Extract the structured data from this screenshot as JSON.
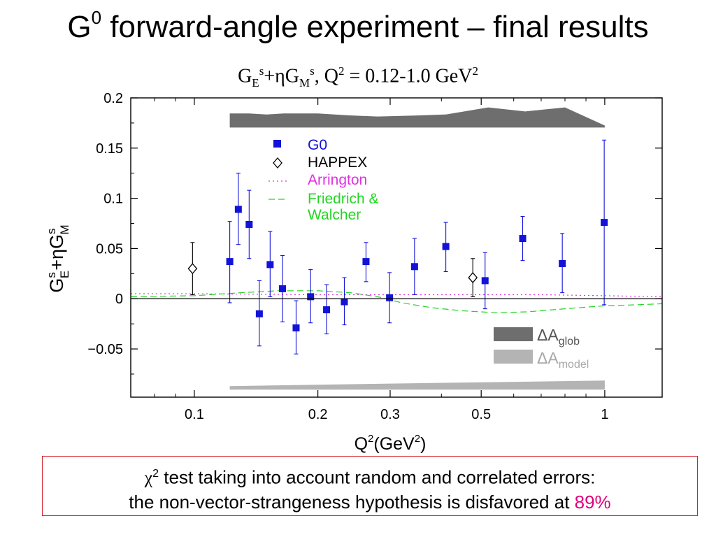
{
  "slide": {
    "title_pre": "G",
    "title_sup": "0",
    "title_rest": " forward-angle experiment – final results",
    "subtitle": {
      "g1": "G",
      "e": "E",
      "s1": "s",
      "plus_eta": "+ηG",
      "m": "M",
      "s2": "s",
      "rest": ", Q",
      "sq": "2",
      "range": " = 0.12-1.0 GeV",
      "sq2": "2"
    },
    "note": {
      "chi": "χ",
      "chi_sup": "2",
      "line1": " test taking into account random and correlated errors:",
      "line2": "the non-vector-strangeness hypothesis is disfavored at ",
      "percent": "89%"
    }
  },
  "chart_data": {
    "type": "scatter",
    "x_scale": "log",
    "xlim": [
      0.07,
      1.38
    ],
    "ylim": [
      -0.098,
      0.2
    ],
    "xticks": [
      "0.1",
      "0.2",
      "0.3",
      "0.5",
      "1"
    ],
    "xtick_values": [
      0.1,
      0.2,
      0.3,
      0.5,
      1.0
    ],
    "yticks": [
      "0.2",
      "0.15",
      "0.1",
      "0.05",
      "0",
      "−0.05"
    ],
    "ytick_values": [
      0.2,
      0.15,
      0.1,
      0.05,
      0,
      -0.05
    ],
    "xlabel": {
      "q": "Q",
      "sup": "2",
      "unit": "(GeV",
      "unit_sup": "2",
      "close": ")"
    },
    "ylabel": {
      "g1": "G",
      "s1": "s",
      "e": "E",
      "plus_eta": "+ηG",
      "s2": "s",
      "m": "M"
    },
    "colors": {
      "g0": "#1212d8",
      "happex": "#000000",
      "arrington": "#e033e0",
      "friedrich": "#22d622",
      "band_glob": "#6e6e6e",
      "band_model": "#b4b4b4"
    },
    "legend": {
      "position": "top-center",
      "g0": "G0",
      "happex": "HAPPEX",
      "arrington": "Arrington",
      "friedrich_1": "Friedrich &",
      "friedrich_2": "Walcher"
    },
    "band_legend": {
      "position": "bottom-right",
      "glob_delta": "ΔA",
      "glob_sub": "glob",
      "model_delta": "ΔA",
      "model_sub": "model"
    },
    "series": [
      {
        "name": "G0",
        "marker": "square",
        "points": [
          {
            "x": 0.122,
            "y": 0.037,
            "lo": -0.004,
            "hi": 0.077
          },
          {
            "x": 0.128,
            "y": 0.089,
            "lo": 0.054,
            "hi": 0.125
          },
          {
            "x": 0.136,
            "y": 0.074,
            "lo": 0.04,
            "hi": 0.108
          },
          {
            "x": 0.144,
            "y": -0.015,
            "lo": -0.047,
            "hi": 0.018
          },
          {
            "x": 0.153,
            "y": 0.034,
            "lo": 0.002,
            "hi": 0.067
          },
          {
            "x": 0.164,
            "y": 0.01,
            "lo": -0.023,
            "hi": 0.043
          },
          {
            "x": 0.177,
            "y": -0.029,
            "lo": -0.055,
            "hi": -0.002
          },
          {
            "x": 0.192,
            "y": 0.002,
            "lo": -0.024,
            "hi": 0.029
          },
          {
            "x": 0.21,
            "y": -0.011,
            "lo": -0.035,
            "hi": 0.014
          },
          {
            "x": 0.232,
            "y": -0.003,
            "lo": -0.026,
            "hi": 0.021
          },
          {
            "x": 0.262,
            "y": 0.037,
            "lo": 0.017,
            "hi": 0.056
          },
          {
            "x": 0.299,
            "y": 0.001,
            "lo": -0.024,
            "hi": 0.026
          },
          {
            "x": 0.344,
            "y": 0.032,
            "lo": 0.004,
            "hi": 0.06
          },
          {
            "x": 0.41,
            "y": 0.052,
            "lo": 0.027,
            "hi": 0.076
          },
          {
            "x": 0.511,
            "y": 0.018,
            "lo": -0.01,
            "hi": 0.046
          },
          {
            "x": 0.631,
            "y": 0.06,
            "lo": 0.038,
            "hi": 0.082
          },
          {
            "x": 0.788,
            "y": 0.035,
            "lo": 0.006,
            "hi": 0.065
          },
          {
            "x": 0.997,
            "y": 0.076,
            "lo": -0.006,
            "hi": 0.158
          }
        ]
      },
      {
        "name": "HAPPEX",
        "marker": "diamond",
        "points": [
          {
            "x": 0.099,
            "y": 0.03,
            "lo": 0.004,
            "hi": 0.056
          },
          {
            "x": 0.477,
            "y": 0.021,
            "lo": 0.002,
            "hi": 0.04
          }
        ]
      }
    ],
    "curves": [
      {
        "name": "Arrington",
        "style": "dotted",
        "x": [
          0.07,
          0.1,
          0.2,
          0.3,
          0.5,
          0.7,
          1.0,
          1.38
        ],
        "y": [
          0.005,
          0.005,
          0.004,
          0.004,
          0.004,
          0.004,
          0.003,
          0.002
        ]
      },
      {
        "name": "Friedrich & Walcher",
        "style": "dashed",
        "x": [
          0.07,
          0.1,
          0.13,
          0.16,
          0.2,
          0.24,
          0.28,
          0.32,
          0.38,
          0.45,
          0.55,
          0.65,
          0.8,
          1.0,
          1.2,
          1.38
        ],
        "y": [
          0.002,
          0.003,
          0.006,
          0.008,
          0.008,
          0.006,
          0.002,
          -0.004,
          -0.009,
          -0.012,
          -0.014,
          -0.013,
          -0.01,
          -0.007,
          -0.006,
          -0.005
        ]
      }
    ],
    "bands": [
      {
        "name": "ΔA glob",
        "x": [
          0.122,
          0.136,
          0.15,
          0.165,
          0.2,
          0.24,
          0.28,
          0.35,
          0.41,
          0.52,
          0.64,
          0.8,
          1.0
        ],
        "height": [
          0.014,
          0.014,
          0.013,
          0.014,
          0.014,
          0.012,
          0.011,
          0.012,
          0.013,
          0.02,
          0.016,
          0.02,
          0.002
        ]
      },
      {
        "name": "ΔA model",
        "x": [
          0.122,
          0.3,
          1.0
        ],
        "height": [
          0.0035,
          0.006,
          0.009
        ]
      }
    ]
  }
}
